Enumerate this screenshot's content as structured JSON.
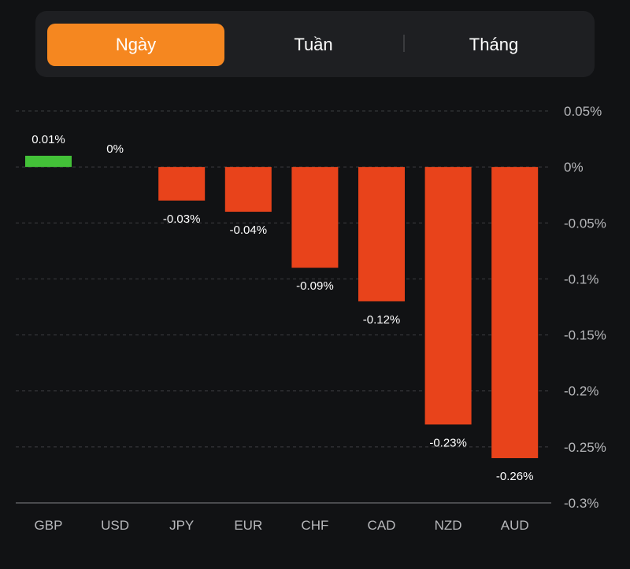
{
  "tabs": [
    {
      "label": "Ngày",
      "active": true
    },
    {
      "label": "Tuần",
      "active": false
    },
    {
      "label": "Tháng",
      "active": false
    }
  ],
  "colors": {
    "positive": "#43c138",
    "negative": "#e8431b",
    "active_tab": "#f58720",
    "background": "#111214"
  },
  "chart_data": {
    "type": "bar",
    "title": "",
    "xlabel": "",
    "ylabel": "",
    "categories": [
      "GBP",
      "USD",
      "JPY",
      "EUR",
      "CHF",
      "CAD",
      "NZD",
      "AUD"
    ],
    "values": [
      0.01,
      0,
      -0.03,
      -0.04,
      -0.09,
      -0.12,
      -0.23,
      -0.26
    ],
    "data_labels": [
      "0.01%",
      "0%",
      "-0.03%",
      "-0.04%",
      "-0.09%",
      "-0.12%",
      "-0.23%",
      "-0.26%"
    ],
    "ylim": [
      -0.3,
      0.05
    ],
    "yticks": [
      0.05,
      0,
      -0.05,
      -0.1,
      -0.15,
      -0.2,
      -0.25,
      -0.3
    ],
    "ytick_labels": [
      "0.05%",
      "0%",
      "-0.05%",
      "-0.1%",
      "-0.15%",
      "-0.2%",
      "-0.25%",
      "-0.3%"
    ],
    "y_axis_position": "right",
    "grid": true,
    "legend": "none"
  }
}
